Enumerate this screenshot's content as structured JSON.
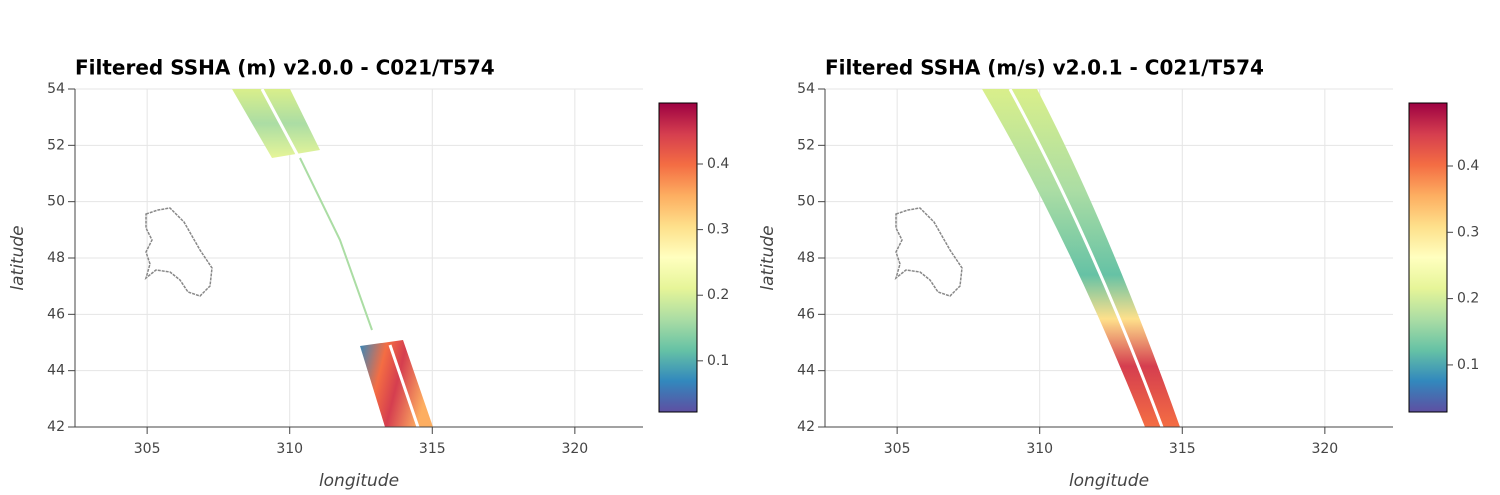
{
  "chart_data": [
    {
      "type": "image",
      "title": "Filtered SSHA (m) v2.0.0 - C021/T574",
      "x_label": "longitude",
      "y_label": "latitude",
      "xlim": [
        302.47,
        322.39
      ],
      "ylim": [
        42,
        54
      ],
      "xticks": [
        305,
        310,
        315,
        320
      ],
      "yticks": [
        42,
        44,
        46,
        48,
        50,
        52,
        54
      ],
      "grid": true,
      "colorbar": {
        "lim": [
          0.022,
          0.493
        ],
        "ticks": [
          0.1,
          0.2,
          0.3,
          0.4
        ],
        "colors": [
          "#5e4fa2",
          "#3288bd",
          "#66c2a5",
          "#abdda4",
          "#e6f598",
          "#ffffbf",
          "#fee08b",
          "#fdae61",
          "#f46d43",
          "#d53e4f",
          "#9e0142"
        ]
      }
    },
    {
      "type": "image",
      "title": "Filtered SSHA (m/s) v2.0.1 - C021/T574",
      "x_label": "longitude",
      "y_label": "latitude",
      "xlim": [
        302.47,
        322.39
      ],
      "ylim": [
        42,
        54
      ],
      "xticks": [
        305,
        310,
        315,
        320
      ],
      "yticks": [
        42,
        44,
        46,
        48,
        50,
        52,
        54
      ],
      "grid": true,
      "colorbar": {
        "lim": [
          0.029,
          0.495
        ],
        "ticks": [
          0.1,
          0.2,
          0.3,
          0.4
        ],
        "colors": [
          "#5e4fa2",
          "#3288bd",
          "#66c2a5",
          "#abdda4",
          "#e6f598",
          "#ffffbf",
          "#fee08b",
          "#fdae61",
          "#f46d43",
          "#d53e4f",
          "#9e0142"
        ]
      }
    }
  ]
}
